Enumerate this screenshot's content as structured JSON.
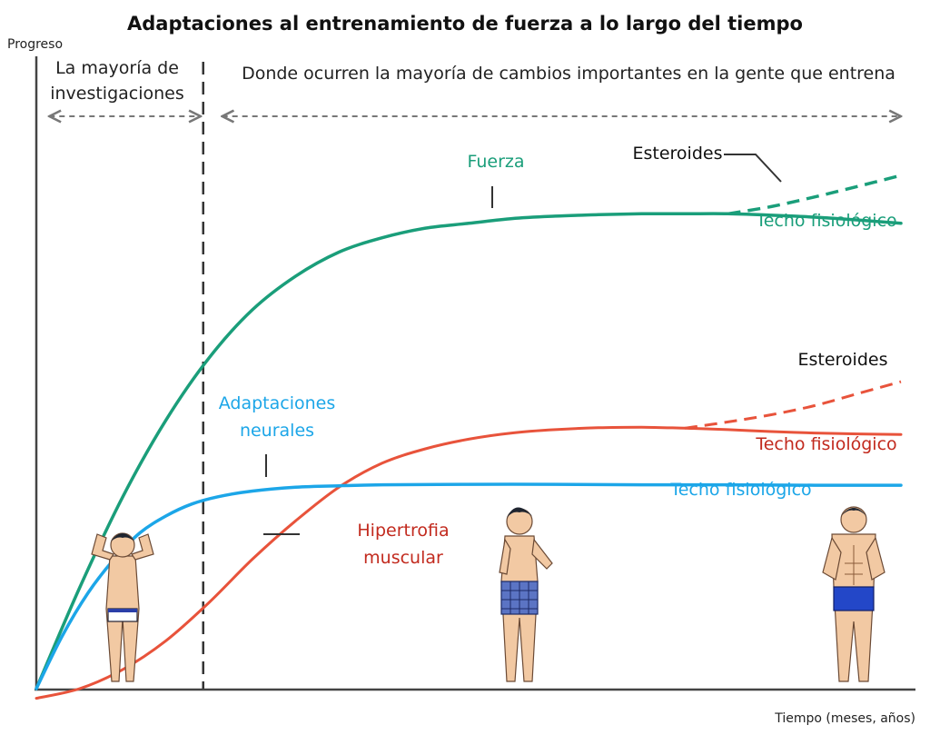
{
  "chart_data": {
    "type": "line",
    "title": "Adaptaciones al entrenamiento de fuerza a lo largo del tiempo",
    "ylabel": "Progreso",
    "xlabel": "Tiempo (meses, años)",
    "xlim": [
      0,
      100
    ],
    "ylim": [
      0,
      100
    ],
    "grid": false,
    "regions": [
      {
        "label_lines": [
          "La mayoría de",
          "investigaciones"
        ],
        "x_start": 1.5,
        "x_end": 19
      },
      {
        "label_lines": [
          "Donde ocurren la mayoría de cambios importantes en la gente que entrena"
        ],
        "x_start": 21.5,
        "x_end": 100
      }
    ],
    "divider_x": 19.3,
    "series": [
      {
        "name": "Fuerza",
        "color": "#1a9e7a",
        "x": [
          0,
          5,
          10,
          15,
          20,
          25,
          30,
          35,
          40,
          45,
          50,
          55,
          60,
          65,
          70,
          75,
          80,
          85,
          90,
          95,
          100
        ],
        "y": [
          0,
          21,
          40,
          56,
          69,
          79,
          86,
          91,
          94,
          96,
          97,
          98,
          98.5,
          98.8,
          99,
          99,
          99,
          98.7,
          98.3,
          97.7,
          97
        ],
        "ceiling_label": "Techo fisiológico",
        "steroids": {
          "label": "Esteroides",
          "x": [
            80,
            85,
            90,
            95,
            100
          ],
          "y": [
            99,
            100.5,
            102.5,
            104.7,
            107
          ]
        }
      },
      {
        "name": "Hipertrofia muscular",
        "color": "#e8533b",
        "x": [
          0,
          5,
          10,
          15,
          20,
          25,
          30,
          35,
          40,
          45,
          50,
          55,
          60,
          65,
          70,
          75,
          80,
          85,
          90,
          95,
          100
        ],
        "y": [
          -2,
          0,
          4,
          10,
          18,
          27,
          35,
          42,
          47,
          50,
          52,
          53.3,
          54,
          54.4,
          54.5,
          54.3,
          54,
          53.6,
          53.3,
          53.1,
          53
        ],
        "ceiling_label": "Techo fisiológico",
        "steroids": {
          "label": "Esteroides",
          "x": [
            75,
            80,
            85,
            90,
            95,
            100
          ],
          "y": [
            54.3,
            55.6,
            57.1,
            59,
            61.5,
            64
          ]
        }
      },
      {
        "name": "Adaptaciones neurales",
        "color": "#1ca6e8",
        "x": [
          0,
          3,
          6,
          9,
          12,
          15,
          18,
          21,
          25,
          30,
          35,
          40,
          50,
          60,
          70,
          80,
          90,
          100
        ],
        "y": [
          0,
          11,
          20,
          27,
          32.5,
          36,
          38.5,
          40,
          41.2,
          42,
          42.3,
          42.5,
          42.6,
          42.6,
          42.5,
          42.5,
          42.4,
          42.4
        ]
      }
    ]
  }
}
